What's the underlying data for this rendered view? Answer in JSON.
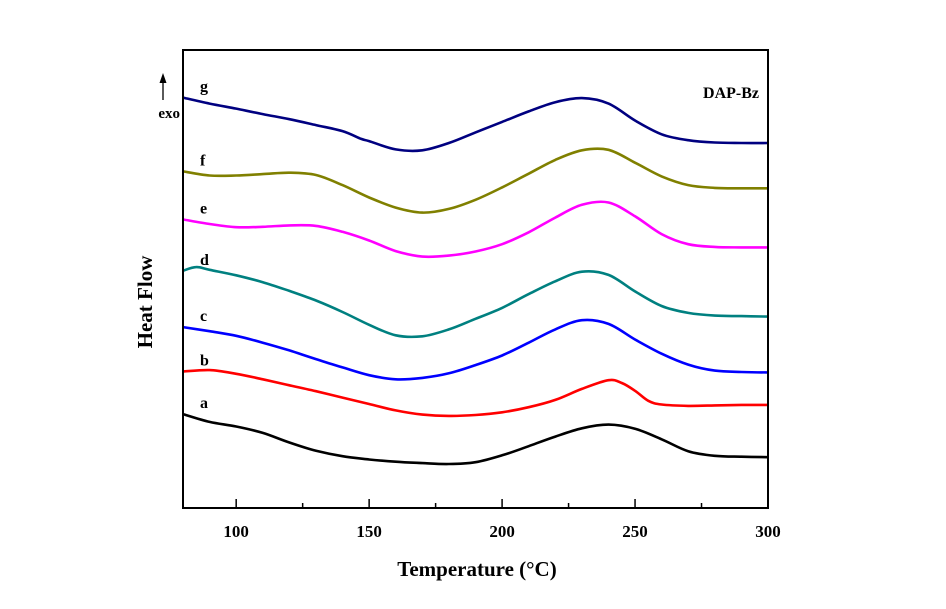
{
  "chart_data": {
    "type": "line",
    "title": "",
    "annotation": "DAP-Bz",
    "xlabel": "Temperature (°C)",
    "ylabel": "Heat Flow",
    "y_direction_label": "exo",
    "xlim": [
      80,
      300
    ],
    "ylim": [
      0,
      100
    ],
    "x_ticks": [
      100,
      150,
      200,
      250,
      300
    ],
    "x_minor_ticks": [
      125,
      175,
      225,
      275
    ],
    "y_ticks_shown": false,
    "grid": false,
    "legend": "none",
    "series": [
      {
        "name": "a",
        "color": "#000000",
        "x": [
          80,
          90,
          100,
          110,
          120,
          130,
          140,
          150,
          160,
          170,
          180,
          190,
          200,
          210,
          220,
          230,
          240,
          250,
          260,
          270,
          280,
          290,
          300
        ],
        "y": [
          20.5,
          18.8,
          17.8,
          16.4,
          14.3,
          12.5,
          11.3,
          10.6,
          10.1,
          9.8,
          9.6,
          10.0,
          11.5,
          13.5,
          15.6,
          17.4,
          18.2,
          17.3,
          15.0,
          12.4,
          11.4,
          11.2,
          11.1
        ]
      },
      {
        "name": "b",
        "color": "#ff0000",
        "x": [
          80,
          90,
          100,
          110,
          120,
          130,
          140,
          150,
          160,
          170,
          180,
          190,
          200,
          210,
          220,
          230,
          240,
          245,
          250,
          255,
          260,
          270,
          280,
          290,
          300
        ],
        "y": [
          29.8,
          30.1,
          29.3,
          28.1,
          26.8,
          25.5,
          24.1,
          22.7,
          21.3,
          20.4,
          20.1,
          20.3,
          20.9,
          22.0,
          23.6,
          26.0,
          27.9,
          27.3,
          25.6,
          23.4,
          22.6,
          22.3,
          22.4,
          22.5,
          22.5
        ]
      },
      {
        "name": "c",
        "color": "#0000ff",
        "x": [
          80,
          90,
          100,
          110,
          120,
          130,
          140,
          150,
          160,
          170,
          180,
          190,
          200,
          210,
          220,
          230,
          240,
          250,
          260,
          270,
          280,
          290,
          300
        ],
        "y": [
          39.5,
          38.6,
          37.6,
          36.1,
          34.4,
          32.5,
          30.7,
          29.0,
          28.1,
          28.4,
          29.4,
          31.2,
          33.3,
          36.1,
          39.0,
          41.0,
          40.2,
          36.8,
          33.7,
          31.3,
          30.0,
          29.7,
          29.6
        ]
      },
      {
        "name": "d",
        "color": "#008080",
        "x": [
          80,
          85,
          90,
          100,
          110,
          120,
          130,
          140,
          150,
          160,
          170,
          180,
          190,
          200,
          210,
          220,
          230,
          240,
          250,
          260,
          270,
          280,
          290,
          300
        ],
        "y": [
          51.8,
          52.6,
          52.0,
          50.8,
          49.3,
          47.4,
          45.3,
          42.8,
          40.0,
          37.7,
          37.5,
          39.0,
          41.3,
          43.7,
          46.7,
          49.5,
          51.6,
          50.9,
          47.3,
          44.1,
          42.6,
          42.0,
          41.9,
          41.8
        ]
      },
      {
        "name": "e",
        "color": "#ff00ff",
        "x": [
          80,
          90,
          100,
          110,
          120,
          130,
          140,
          150,
          160,
          170,
          180,
          190,
          200,
          210,
          220,
          230,
          240,
          250,
          260,
          270,
          280,
          290,
          300
        ],
        "y": [
          63.0,
          62.0,
          61.3,
          61.4,
          61.7,
          61.6,
          60.3,
          58.4,
          56.1,
          54.9,
          55.1,
          56.0,
          57.6,
          60.2,
          63.4,
          66.2,
          66.7,
          63.7,
          59.8,
          57.6,
          57.0,
          56.9,
          56.9
        ]
      },
      {
        "name": "f",
        "color": "#808000",
        "x": [
          80,
          90,
          100,
          110,
          120,
          130,
          140,
          150,
          160,
          170,
          180,
          190,
          200,
          210,
          220,
          230,
          240,
          250,
          260,
          270,
          280,
          290,
          300
        ],
        "y": [
          73.5,
          72.6,
          72.6,
          72.9,
          73.2,
          72.7,
          70.5,
          67.8,
          65.6,
          64.5,
          65.3,
          67.3,
          70.0,
          73.0,
          76.0,
          78.1,
          78.2,
          75.4,
          72.4,
          70.5,
          69.9,
          69.8,
          69.8
        ]
      },
      {
        "name": "g",
        "color": "#000080",
        "x": [
          80,
          90,
          100,
          110,
          120,
          130,
          140,
          147,
          150,
          160,
          170,
          180,
          190,
          200,
          210,
          220,
          230,
          240,
          250,
          260,
          270,
          280,
          290,
          300
        ],
        "y": [
          89.6,
          88.3,
          87.2,
          86.0,
          84.9,
          83.6,
          82.3,
          80.6,
          80.1,
          78.3,
          78.1,
          79.7,
          82.0,
          84.3,
          86.6,
          88.6,
          89.5,
          88.3,
          84.6,
          81.6,
          80.3,
          79.8,
          79.7,
          79.7
        ]
      }
    ]
  }
}
